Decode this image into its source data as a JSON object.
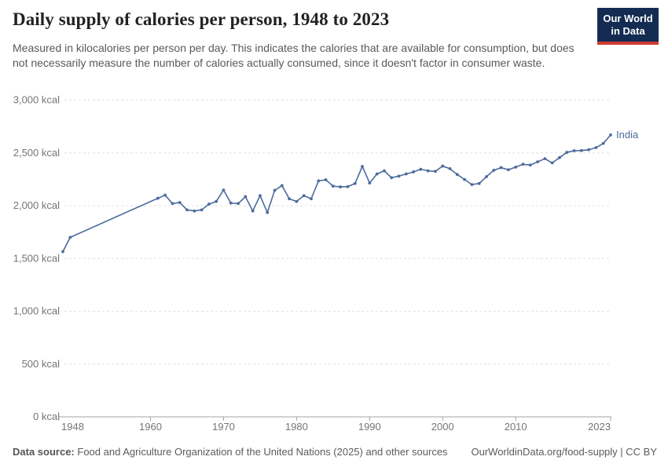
{
  "header": {
    "title": "Daily supply of calories per person, 1948 to 2023",
    "subtitle": "Measured in kilocalories per person per day. This indicates the calories that are available for consumption, but does not necessarily measure the number of calories actually consumed, since it doesn't factor in consumer waste.",
    "logo": {
      "line1": "Our World",
      "line2": "in Data"
    }
  },
  "chart_data": {
    "type": "line",
    "title": "Daily supply of calories per person, 1948 to 2023",
    "xlabel": "",
    "ylabel": "",
    "unit": "kcal",
    "xlim": [
      1948,
      2023
    ],
    "ylim": [
      0,
      3000
    ],
    "x_ticks": [
      1948,
      1960,
      1970,
      1980,
      1990,
      2000,
      2010,
      2023
    ],
    "y_ticks": [
      0,
      500,
      1000,
      1500,
      2000,
      2500,
      3000
    ],
    "grid": true,
    "legend_position": "end-of-line",
    "series": [
      {
        "name": "India",
        "color": "#4c6a9c",
        "points": [
          [
            1948,
            1565
          ],
          [
            1949,
            1700
          ],
          [
            1961,
            2070
          ],
          [
            1962,
            2100
          ],
          [
            1963,
            2020
          ],
          [
            1964,
            2030
          ],
          [
            1965,
            1960
          ],
          [
            1966,
            1950
          ],
          [
            1967,
            1960
          ],
          [
            1968,
            2015
          ],
          [
            1969,
            2040
          ],
          [
            1970,
            2148
          ],
          [
            1971,
            2025
          ],
          [
            1972,
            2020
          ],
          [
            1973,
            2085
          ],
          [
            1974,
            1950
          ],
          [
            1975,
            2095
          ],
          [
            1976,
            1935
          ],
          [
            1977,
            2145
          ],
          [
            1978,
            2190
          ],
          [
            1979,
            2065
          ],
          [
            1980,
            2040
          ],
          [
            1981,
            2095
          ],
          [
            1982,
            2065
          ],
          [
            1983,
            2235
          ],
          [
            1984,
            2245
          ],
          [
            1985,
            2185
          ],
          [
            1986,
            2178
          ],
          [
            1987,
            2180
          ],
          [
            1988,
            2210
          ],
          [
            1989,
            2372
          ],
          [
            1990,
            2215
          ],
          [
            1991,
            2300
          ],
          [
            1992,
            2330
          ],
          [
            1993,
            2265
          ],
          [
            1994,
            2280
          ],
          [
            1995,
            2300
          ],
          [
            1996,
            2320
          ],
          [
            1997,
            2345
          ],
          [
            1998,
            2330
          ],
          [
            1999,
            2325
          ],
          [
            2000,
            2375
          ],
          [
            2001,
            2350
          ],
          [
            2002,
            2295
          ],
          [
            2003,
            2248
          ],
          [
            2004,
            2200
          ],
          [
            2005,
            2210
          ],
          [
            2006,
            2275
          ],
          [
            2007,
            2335
          ],
          [
            2008,
            2360
          ],
          [
            2009,
            2340
          ],
          [
            2010,
            2365
          ],
          [
            2011,
            2392
          ],
          [
            2012,
            2385
          ],
          [
            2013,
            2415
          ],
          [
            2014,
            2445
          ],
          [
            2015,
            2405
          ],
          [
            2016,
            2455
          ],
          [
            2017,
            2505
          ],
          [
            2018,
            2520
          ],
          [
            2019,
            2522
          ],
          [
            2020,
            2530
          ],
          [
            2021,
            2550
          ],
          [
            2022,
            2590
          ],
          [
            2023,
            2670
          ]
        ]
      }
    ]
  },
  "footer": {
    "data_source_label": "Data source:",
    "data_source_text": "Food and Agriculture Organization of the United Nations (2025) and other sources",
    "attribution": "OurWorldinData.org/food-supply | CC BY"
  },
  "colors": {
    "series_blue": "#4c6a9c",
    "logo_navy": "#142c52",
    "logo_red": "#cf3c32",
    "gridline": "#e1e1e1",
    "axis": "#a3a3a3",
    "tick_label": "#757575"
  }
}
